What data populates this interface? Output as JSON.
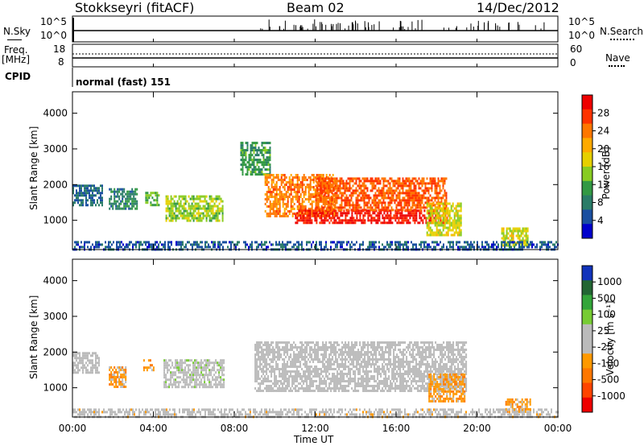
{
  "header": {
    "station": "Stokkseyri (fitACF)",
    "beam": "Beam 02",
    "date": "14/Dec/2012"
  },
  "top_panels": {
    "nsky_label": "N.Sky",
    "nsky_tick_top": "10^5",
    "nsky_tick_bottom": "10^0",
    "nsky_right_top": "10^5",
    "nsky_right_bottom": "10^0",
    "nsearch_label": "N.Search",
    "freq_label": "Freq.",
    "freq_unit": "[MHz]",
    "freq_tick_top": "18",
    "freq_tick_bottom": "8",
    "nave_tick_top": "60",
    "nave_tick_bottom": "0",
    "nave_label": "Nave",
    "cpid_label": "CPID",
    "cpid_value": "normal (fast) 151"
  },
  "power_colorbar": {
    "label": "Power [dB]",
    "ticks": [
      "28",
      "24",
      "20",
      "16",
      "12",
      "8",
      "4"
    ],
    "colors": [
      "#ee0000",
      "#ff3300",
      "#ff7700",
      "#ffaa00",
      "#e6d000",
      "#88cc22",
      "#339944",
      "#2a7c68",
      "#1a4fa0",
      "#0000cc"
    ]
  },
  "velocity_colorbar": {
    "label": "Velocity [m s⁻¹]",
    "ticks": [
      "1000",
      "500",
      "100",
      "25",
      "-25",
      "-100",
      "-500",
      "-1000"
    ],
    "colors": [
      "#1133bb",
      "#226633",
      "#33a53a",
      "#77cc33",
      "#bbbbbb",
      "#bbbbbb",
      "#ff9900",
      "#ff7700",
      "#ff4400",
      "#ee0000"
    ]
  },
  "x_axis": {
    "title": "Time UT",
    "ticks": [
      "00:00",
      "04:00",
      "08:00",
      "12:00",
      "16:00",
      "20:00",
      "00:00"
    ]
  },
  "chart_data": [
    {
      "type": "heatmap",
      "title": "",
      "xlabel": "Time UT",
      "ylabel": "Slant Range [km]",
      "xlim": [
        0,
        24
      ],
      "ylim": [
        180,
        4600
      ],
      "yticks": [
        1000,
        2000,
        3000,
        4000
      ],
      "value_label": "Power [dB]",
      "value_range": [
        0,
        30
      ],
      "regions": [
        {
          "t0": 0.0,
          "t1": 1.5,
          "r0": 1400,
          "r1": 2000,
          "value": 6
        },
        {
          "t0": 1.8,
          "t1": 3.2,
          "r0": 1300,
          "r1": 1900,
          "value": 8
        },
        {
          "t0": 3.6,
          "t1": 4.3,
          "r0": 1400,
          "r1": 1800,
          "value": 12
        },
        {
          "t0": 4.6,
          "t1": 7.4,
          "r0": 1000,
          "r1": 1700,
          "value": 14
        },
        {
          "t0": 8.3,
          "t1": 9.8,
          "r0": 2300,
          "r1": 3200,
          "value": 10
        },
        {
          "t0": 9.5,
          "t1": 13.0,
          "r0": 1100,
          "r1": 2300,
          "value": 22
        },
        {
          "t0": 11.0,
          "t1": 18.5,
          "r0": 900,
          "r1": 1300,
          "value": 28
        },
        {
          "t0": 12.0,
          "t1": 18.5,
          "r0": 1300,
          "r1": 2200,
          "value": 24
        },
        {
          "t0": 17.5,
          "t1": 19.2,
          "r0": 600,
          "r1": 1500,
          "value": 16
        },
        {
          "t0": 21.2,
          "t1": 22.5,
          "r0": 300,
          "r1": 800,
          "value": 16
        },
        {
          "t0": 0.0,
          "t1": 24.0,
          "r0": 180,
          "r1": 420,
          "value": 5
        }
      ]
    },
    {
      "type": "heatmap",
      "title": "",
      "xlabel": "Time UT",
      "ylabel": "Slant Range [km]",
      "xlim": [
        0,
        24
      ],
      "ylim": [
        180,
        4600
      ],
      "yticks": [
        1000,
        2000,
        3000,
        4000
      ],
      "value_label": "Velocity [m s⁻¹]",
      "value_range": [
        -1000,
        1000
      ],
      "regions": [
        {
          "t0": 0.0,
          "t1": 1.3,
          "r0": 1400,
          "r1": 2000,
          "value": 0
        },
        {
          "t0": 1.8,
          "t1": 2.6,
          "r0": 1000,
          "r1": 1600,
          "value": -300
        },
        {
          "t0": 3.5,
          "t1": 4.0,
          "r0": 1500,
          "r1": 1800,
          "value": -300
        },
        {
          "t0": 4.5,
          "t1": 7.5,
          "r0": 1000,
          "r1": 1800,
          "value": 60
        },
        {
          "t0": 9.0,
          "t1": 19.5,
          "r0": 900,
          "r1": 2300,
          "value": 0
        },
        {
          "t0": 17.6,
          "t1": 19.4,
          "r0": 600,
          "r1": 1400,
          "value": -300
        },
        {
          "t0": 21.4,
          "t1": 22.6,
          "r0": 300,
          "r1": 700,
          "value": -300
        },
        {
          "t0": 0.0,
          "t1": 24.0,
          "r0": 180,
          "r1": 420,
          "value": -50
        }
      ]
    }
  ]
}
